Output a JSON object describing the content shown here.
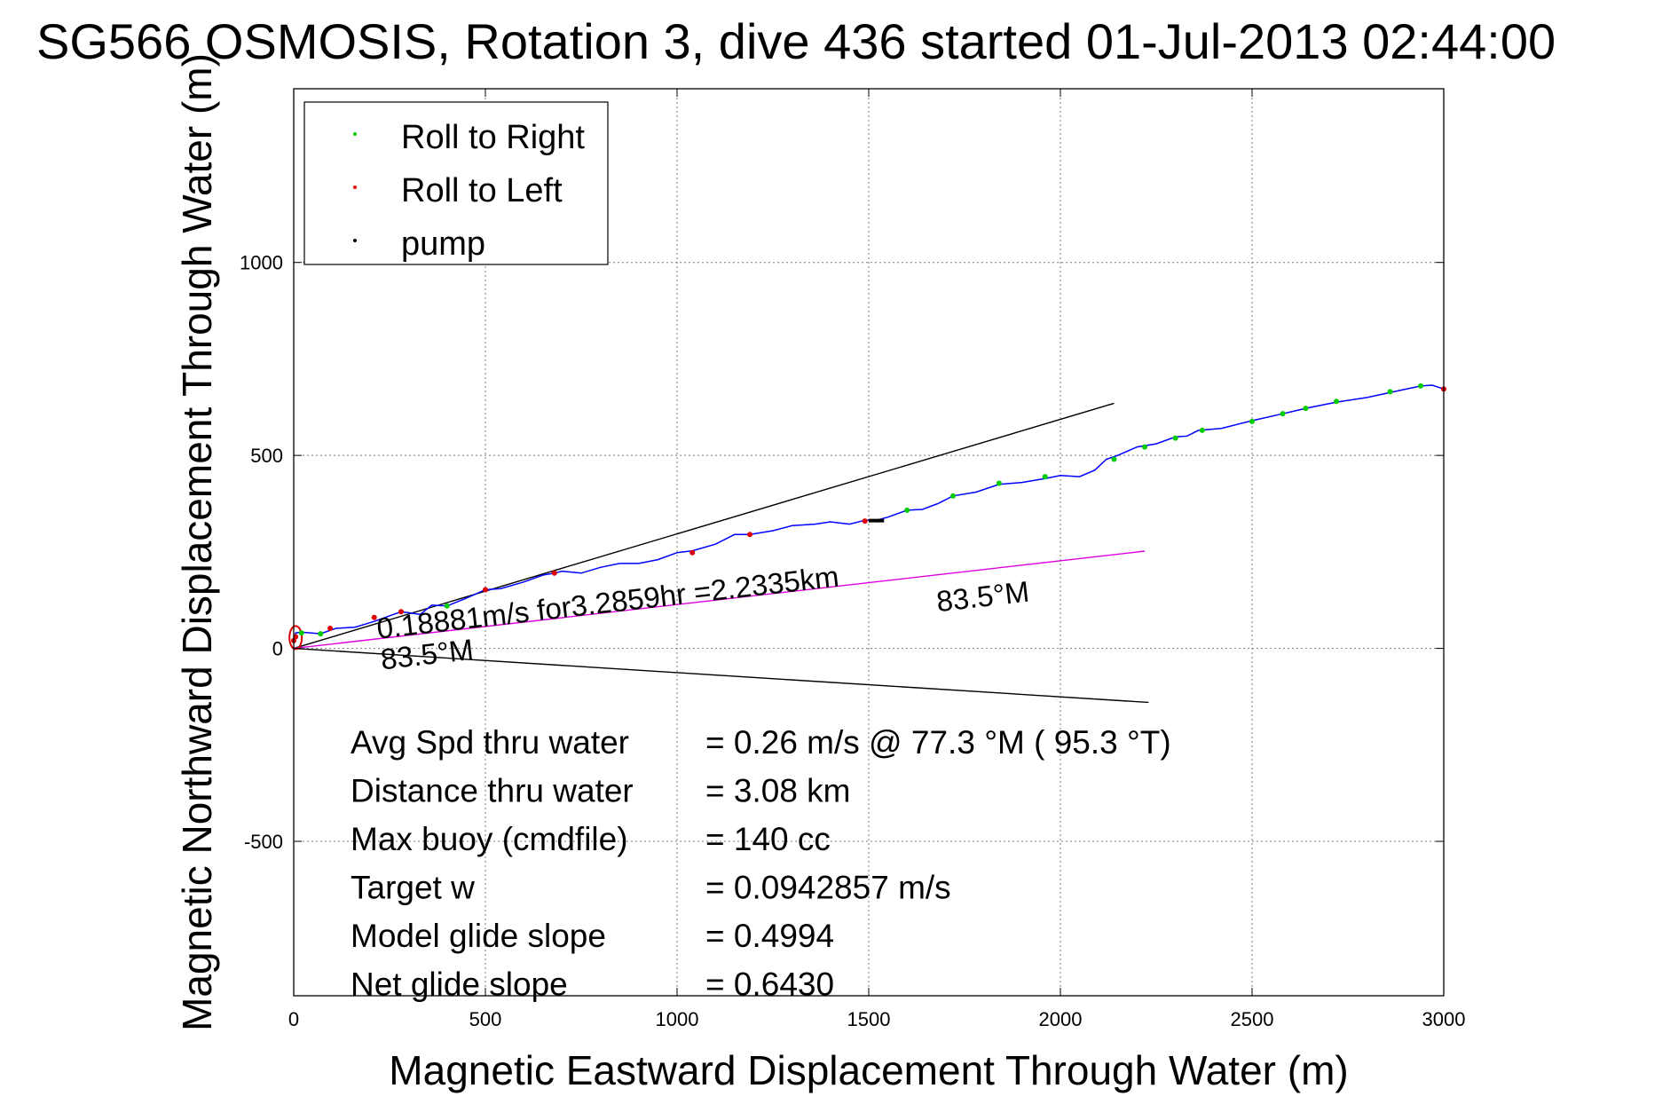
{
  "chart_data": {
    "type": "line",
    "title": "SG566 OSMOSIS, Rotation 3, dive 436 started 01-Jul-2013 02:44:00",
    "xlabel": "Magnetic Eastward Displacement Through Water (m)",
    "ylabel": "Magnetic Northward Displacement Through Water (m)",
    "xlim": [
      0,
      3000
    ],
    "ylim": [
      -900,
      1450
    ],
    "x_ticks": [
      0,
      500,
      1000,
      1500,
      2000,
      2500,
      3000
    ],
    "y_ticks": [
      -500,
      0,
      500,
      1000
    ],
    "x_tick_labels": [
      "0",
      "500",
      "1000",
      "1500",
      "2000",
      "2500",
      "3000"
    ],
    "y_tick_labels": [
      "-500",
      "0",
      "500",
      "1000"
    ],
    "grid": true,
    "legend_position": "top-left",
    "legend": [
      {
        "label": "Roll to Right",
        "color": "#00cc00"
      },
      {
        "label": "Roll to Left",
        "color": "#dd0000"
      },
      {
        "label": "pump",
        "color": "#000000"
      }
    ],
    "track": {
      "color": "#0000ff",
      "x": [
        0,
        5,
        20,
        70,
        110,
        160,
        210,
        280,
        330,
        360,
        400,
        450,
        500,
        540,
        600,
        650,
        680,
        700,
        750,
        800,
        850,
        900,
        950,
        1000,
        1040,
        1100,
        1150,
        1190,
        1250,
        1300,
        1360,
        1400,
        1450,
        1490,
        1520,
        1550,
        1600,
        1640,
        1680,
        1720,
        1780,
        1840,
        1900,
        1960,
        2000,
        2050,
        2090,
        2120,
        2150,
        2200,
        2250,
        2300,
        2330,
        2360,
        2420,
        2500,
        2580,
        2640,
        2720,
        2800,
        2870,
        2940,
        2970,
        3000
      ],
      "y": [
        20,
        40,
        42,
        38,
        52,
        55,
        70,
        95,
        88,
        112,
        110,
        130,
        152,
        155,
        172,
        190,
        195,
        200,
        195,
        210,
        220,
        220,
        230,
        248,
        253,
        270,
        295,
        295,
        305,
        318,
        322,
        328,
        322,
        332,
        332,
        340,
        358,
        360,
        375,
        395,
        405,
        425,
        430,
        440,
        448,
        445,
        462,
        490,
        500,
        522,
        530,
        548,
        550,
        565,
        570,
        590,
        608,
        622,
        638,
        650,
        665,
        680,
        682,
        672
      ]
    },
    "roll_right_points": {
      "color": "#00cc00",
      "x": [
        20,
        70,
        400,
        1600,
        1720,
        1840,
        1960,
        2140,
        2220,
        2300,
        2370,
        2500,
        2580,
        2640,
        2720,
        2860,
        2940
      ],
      "y": [
        40,
        38,
        110,
        358,
        395,
        428,
        445,
        490,
        522,
        545,
        565,
        588,
        608,
        622,
        640,
        665,
        680
      ]
    },
    "roll_left_points": {
      "color": "#dd0000",
      "x": [
        0,
        5,
        95,
        210,
        280,
        500,
        680,
        1040,
        1190,
        1490,
        3000
      ],
      "y": [
        20,
        30,
        52,
        80,
        95,
        152,
        195,
        248,
        295,
        330,
        672
      ]
    },
    "pump_segments": [
      {
        "x": [
          1500,
          1540
        ],
        "y": [
          331,
          331
        ]
      }
    ],
    "lines": [
      {
        "name": "heading_upper",
        "color": "#000000",
        "x": [
          0,
          2140
        ],
        "y": [
          0,
          635
        ]
      },
      {
        "name": "heading_lower",
        "color": "#000000",
        "x": [
          0,
          2230
        ],
        "y": [
          0,
          -140
        ]
      },
      {
        "name": "current",
        "color": "#dd00dd",
        "x": [
          0,
          2220
        ],
        "y": [
          0,
          252
        ]
      }
    ],
    "annotations": [
      {
        "text": "0.18881m/s for3.2859hr =2.2335km",
        "x": 220,
        "y": 25,
        "rotation": -6.5
      },
      {
        "text": "83.5°M",
        "x": 1680,
        "y": 95,
        "rotation": -6.5
      },
      {
        "text": "83.5°M",
        "x": 230,
        "y": -55,
        "rotation": -6.5
      }
    ],
    "stats": [
      {
        "label": "Avg Spd thru water",
        "value": "=  0.26 m/s @  77.3 °M ( 95.3 °T)"
      },
      {
        "label": "Distance thru water",
        "value": "=  3.08 km"
      },
      {
        "label": "Max buoy (cmdfile)",
        "value": "= 140 cc"
      },
      {
        "label": "Target w",
        "value": "= 0.0942857 m/s"
      },
      {
        "label": "Model glide slope",
        "value": "= 0.4994"
      },
      {
        "label": "Net glide slope",
        "value": "= 0.6430"
      }
    ]
  }
}
